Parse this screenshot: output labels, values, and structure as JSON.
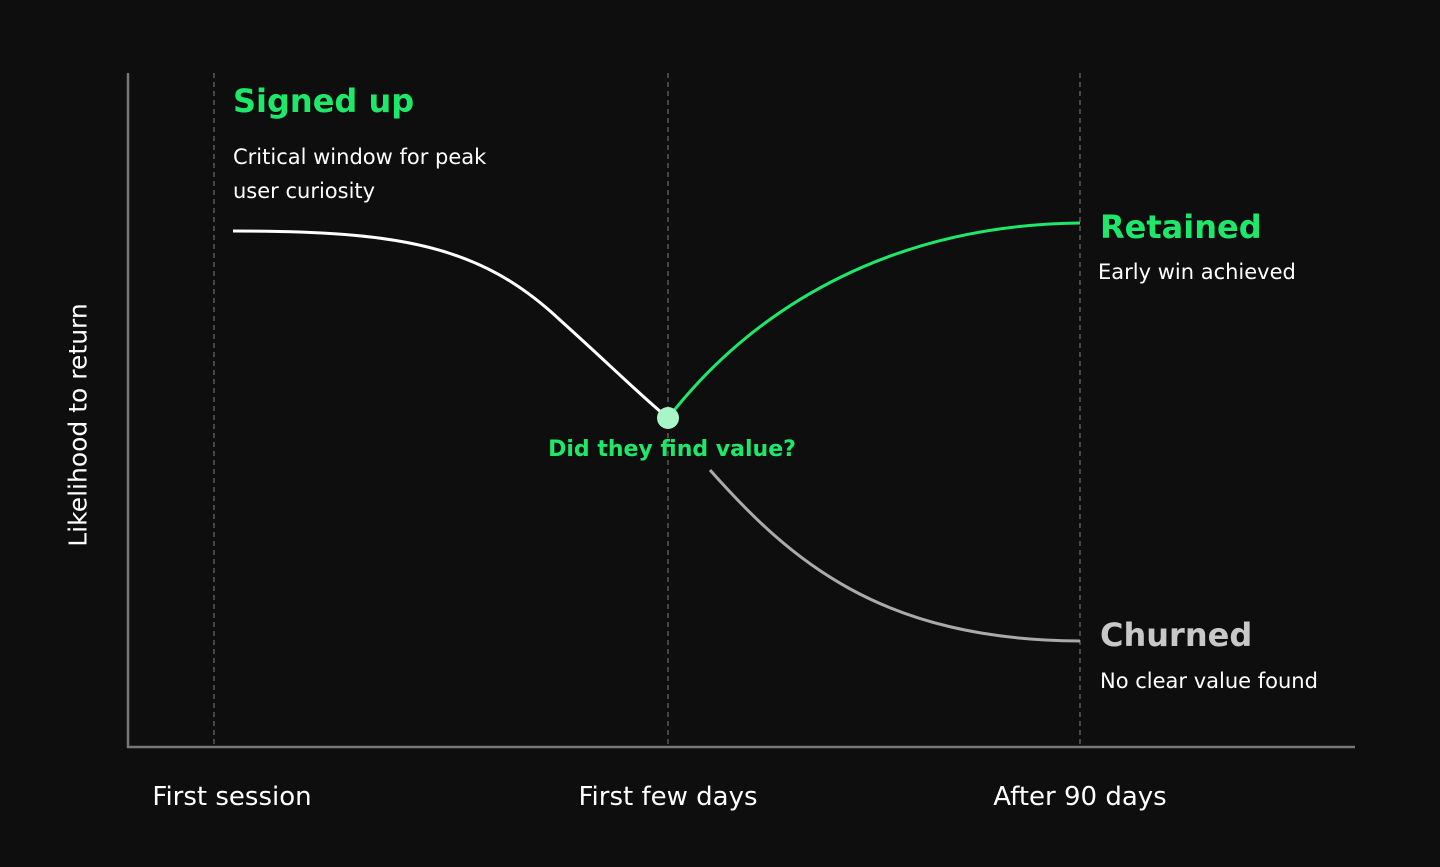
{
  "y_axis_label": "Likelihood to return",
  "x_labels": [
    "First session",
    "First few days",
    "After 90 days"
  ],
  "signed_up": {
    "title": "Signed up",
    "description": "Critical window for peak user curiosity"
  },
  "decision": "Did they find value?",
  "retained": {
    "title": "Retained",
    "description": "Early win achieved"
  },
  "churned": {
    "title": "Churned",
    "description": "No clear value found"
  }
}
